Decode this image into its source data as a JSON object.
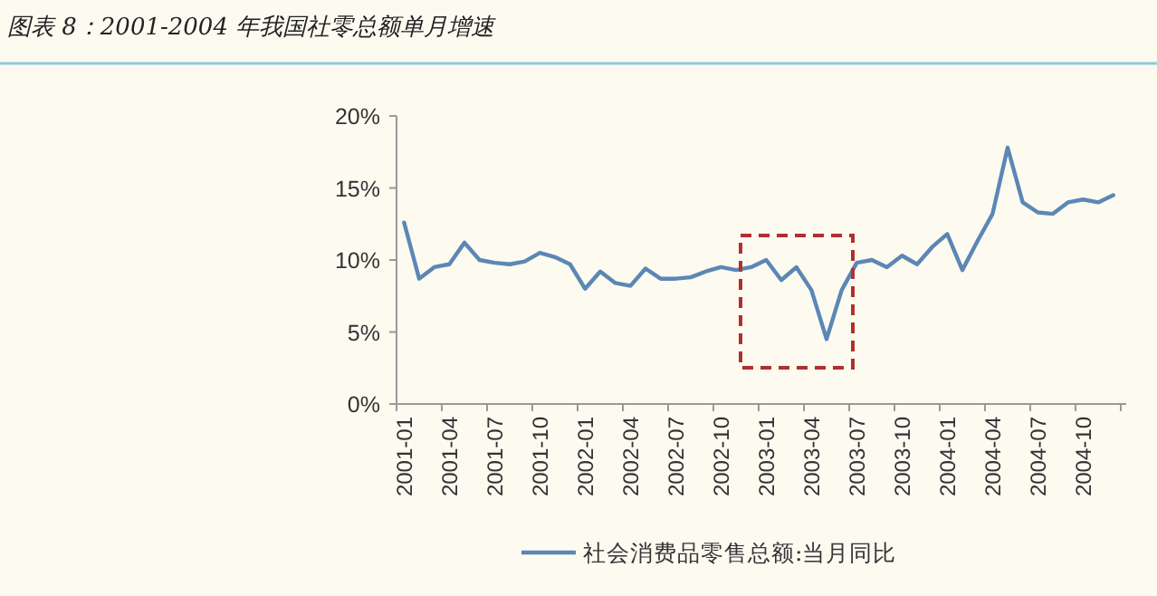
{
  "chart_data": {
    "type": "line",
    "title": "图表 8：2001-2004 年我国社零总额单月增速",
    "categories": [
      "2001-01",
      null,
      null,
      "2001-04",
      null,
      null,
      "2001-07",
      null,
      null,
      "2001-10",
      null,
      null,
      "2002-01",
      null,
      null,
      "2002-04",
      null,
      null,
      "2002-07",
      null,
      null,
      "2002-10",
      null,
      null,
      "2003-01",
      null,
      null,
      "2003-04",
      null,
      null,
      "2003-07",
      null,
      null,
      "2003-10",
      null,
      null,
      "2004-01",
      null,
      null,
      "2004-04",
      null,
      null,
      "2004-07",
      null,
      null,
      "2004-10",
      null,
      null
    ],
    "series": [
      {
        "name": "社会消费品零售总额:当月同比",
        "color": "#5b87b5",
        "values": [
          12.6,
          8.7,
          9.5,
          9.7,
          11.2,
          10.0,
          9.8,
          9.7,
          9.9,
          10.5,
          10.2,
          9.7,
          8.0,
          9.2,
          8.4,
          8.2,
          9.4,
          8.7,
          8.7,
          8.8,
          9.2,
          9.5,
          9.3,
          9.5,
          10.0,
          8.6,
          9.5,
          7.9,
          4.5,
          7.9,
          9.8,
          10.0,
          9.5,
          10.3,
          9.7,
          10.9,
          11.8,
          9.3,
          11.3,
          13.2,
          17.8,
          14.0,
          13.3,
          13.2,
          14.0,
          14.2,
          14.0,
          14.5
        ]
      }
    ],
    "ylim": [
      0,
      20
    ],
    "yticks": [
      {
        "value": 0,
        "label": "0%"
      },
      {
        "value": 5,
        "label": "5%"
      },
      {
        "value": 10,
        "label": "10%"
      },
      {
        "value": 15,
        "label": "15%"
      },
      {
        "value": 20,
        "label": "20%"
      }
    ],
    "grid": false,
    "legend": "bottom",
    "marker": "none",
    "line_style": "solid"
  }
}
